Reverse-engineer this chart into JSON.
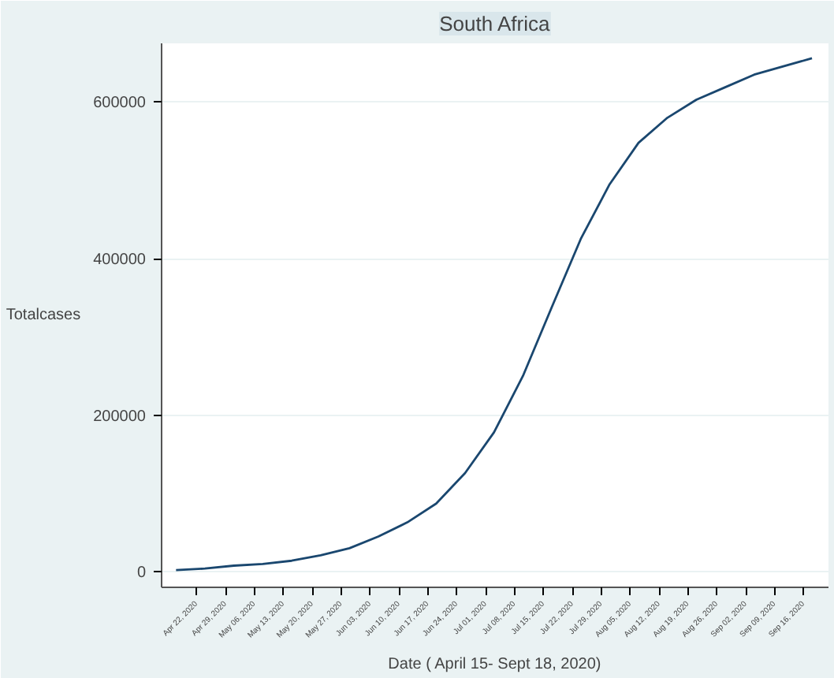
{
  "chart_data": {
    "type": "line",
    "title": "South Africa",
    "xlabel": "Date ( April 15- Sept 18, 2020)",
    "ylabel": "Totalcases",
    "x": [
      "2020-04-17",
      "2020-04-24",
      "2020-05-01",
      "2020-05-08",
      "2020-05-15",
      "2020-05-22",
      "2020-05-29",
      "2020-06-05",
      "2020-06-12",
      "2020-06-19",
      "2020-06-26",
      "2020-07-03",
      "2020-07-10",
      "2020-07-17",
      "2020-07-24",
      "2020-07-31",
      "2020-08-07",
      "2020-08-14",
      "2020-08-21",
      "2020-08-28",
      "2020-09-04",
      "2020-09-18"
    ],
    "series": [
      {
        "color": "#1a476f",
        "values": [
          2100,
          4000,
          7700,
          9800,
          14000,
          21000,
          30000,
          45000,
          63000,
          87000,
          126000,
          178000,
          250000,
          338000,
          425000,
          495000,
          548000,
          580000,
          603000,
          619000,
          635000,
          656000
        ]
      }
    ],
    "xlim": [
      "2020-04-13T12:00",
      "2020-09-22"
    ],
    "ylim": [
      -20000,
      675000
    ],
    "yticks": [
      0,
      200000,
      400000,
      600000
    ],
    "xticks": [
      {
        "value": "2020-04-22",
        "label": "Apr 22, 2020"
      },
      {
        "value": "2020-04-29",
        "label": "Apr 29, 2020"
      },
      {
        "value": "2020-05-06",
        "label": "May 06, 2020"
      },
      {
        "value": "2020-05-13",
        "label": "May 13, 2020"
      },
      {
        "value": "2020-05-20",
        "label": "May 20, 2020"
      },
      {
        "value": "2020-05-27",
        "label": "May 27, 2020"
      },
      {
        "value": "2020-06-03",
        "label": "Jun 03, 2020"
      },
      {
        "value": "2020-06-10",
        "label": "Jun 10, 2020"
      },
      {
        "value": "2020-06-17",
        "label": "Jun 17, 2020"
      },
      {
        "value": "2020-06-24",
        "label": "Jun 24, 2020"
      },
      {
        "value": "2020-07-01",
        "label": "Jul 01, 2020"
      },
      {
        "value": "2020-07-08",
        "label": "Jul 08, 2020"
      },
      {
        "value": "2020-07-15",
        "label": "Jul 15, 2020"
      },
      {
        "value": "2020-07-22",
        "label": "Jul 22, 2020"
      },
      {
        "value": "2020-07-29",
        "label": "Jul 29, 2020"
      },
      {
        "value": "2020-08-05",
        "label": "Aug 05, 2020"
      },
      {
        "value": "2020-08-12",
        "label": "Aug 12, 2020"
      },
      {
        "value": "2020-08-19",
        "label": "Aug 19, 2020"
      },
      {
        "value": "2020-08-26",
        "label": "Aug 26, 2020"
      },
      {
        "value": "2020-09-02",
        "label": "Sep 02, 2020"
      },
      {
        "value": "2020-09-09",
        "label": "Sep 09, 2020"
      },
      {
        "value": "2020-09-16",
        "label": "Sep 16, 2020"
      }
    ],
    "grid": "y",
    "line_style": "solid"
  }
}
